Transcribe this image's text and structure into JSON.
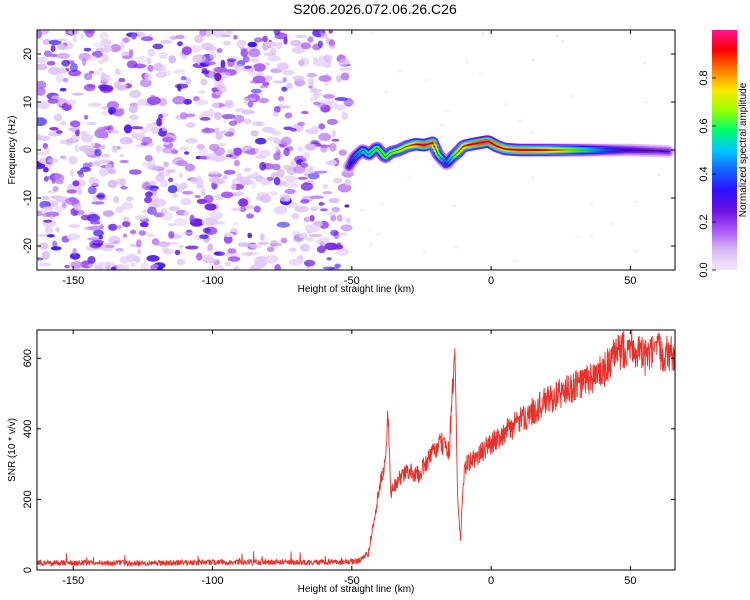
{
  "title": "S206.2026.072.06.26.C26",
  "chart_data": [
    {
      "type": "heatmap",
      "xlabel": "Height of straight line (km)",
      "ylabel": "Frequency (Hz)",
      "xlim": [
        -163,
        66
      ],
      "ylim": [
        -25,
        25
      ],
      "xticks": [
        -150,
        -100,
        -50,
        0,
        50
      ],
      "yticks": [
        -20,
        -10,
        0,
        10,
        20
      ],
      "colorbar": {
        "label": "Normalized spectral amplitude",
        "range": [
          0,
          1
        ],
        "ticks": [
          "0.0",
          "0.2",
          "0.4",
          "0.6",
          "0.8"
        ],
        "colors": [
          "#f2e8fb",
          "#d9b8f3",
          "#a855f7",
          "#6a0fe0",
          "#2a10ff",
          "#1466ff",
          "#00c8ff",
          "#00ff66",
          "#9cff00",
          "#ffe600",
          "#ff7a00",
          "#ff0000",
          "#ff1493"
        ]
      },
      "regions": {
        "noise_x_range": [
          -163,
          -51
        ],
        "signal_x_range": [
          -51,
          66
        ]
      },
      "signal_track": {
        "x": [
          -51,
          -49,
          -46,
          -44,
          -41,
          -38,
          -36,
          -33,
          -30,
          -27,
          -24,
          -21,
          -19,
          -16,
          -14,
          -12,
          -10,
          -7,
          -4,
          -1,
          2,
          5,
          10,
          20,
          30,
          40,
          50,
          60,
          64
        ],
        "y": [
          -3.5,
          -1.5,
          0,
          -1,
          0.5,
          -1.5,
          -0.5,
          0,
          0.8,
          1.2,
          1,
          1.5,
          -1,
          -3,
          -1.5,
          -0.5,
          0.8,
          1.2,
          1.5,
          1.8,
          0.8,
          0.2,
          0,
          0,
          0,
          0,
          0,
          -0.2,
          -0.3
        ],
        "amplitude": [
          0.3,
          0.45,
          0.55,
          0.6,
          0.65,
          0.7,
          0.7,
          0.75,
          0.8,
          0.9,
          1.0,
          0.95,
          0.7,
          0.4,
          0.6,
          0.8,
          0.85,
          0.95,
          1.0,
          1.0,
          0.95,
          0.9,
          0.95,
          0.9,
          0.7,
          0.45,
          0.3,
          0.25,
          0.25
        ]
      }
    },
    {
      "type": "line",
      "xlabel": "Height of straight line (km)",
      "ylabel": "SNR (10 * v/v)",
      "xlim": [
        -163,
        66
      ],
      "ylim": [
        0,
        680
      ],
      "xticks": [
        -150,
        -100,
        -50,
        0,
        50
      ],
      "yticks": [
        0,
        200,
        400,
        600
      ],
      "series": [
        {
          "color": "#e8302a",
          "x": [
            -163,
            -140,
            -120,
            -100,
            -80,
            -60,
            -48,
            -44,
            -42,
            -40,
            -38,
            -37,
            -36,
            -34,
            -30,
            -26,
            -22,
            -18,
            -15,
            -13,
            -12,
            -11,
            -10,
            -9,
            -5,
            0,
            10,
            20,
            30,
            40,
            45,
            50,
            55,
            60,
            66
          ],
          "y": [
            20,
            20,
            20,
            22,
            22,
            22,
            24,
            50,
            140,
            240,
            300,
            440,
            220,
            250,
            280,
            270,
            320,
            360,
            340,
            620,
            200,
            85,
            250,
            300,
            320,
            360,
            420,
            480,
            520,
            560,
            610,
            640,
            600,
            620,
            610
          ]
        }
      ]
    }
  ]
}
